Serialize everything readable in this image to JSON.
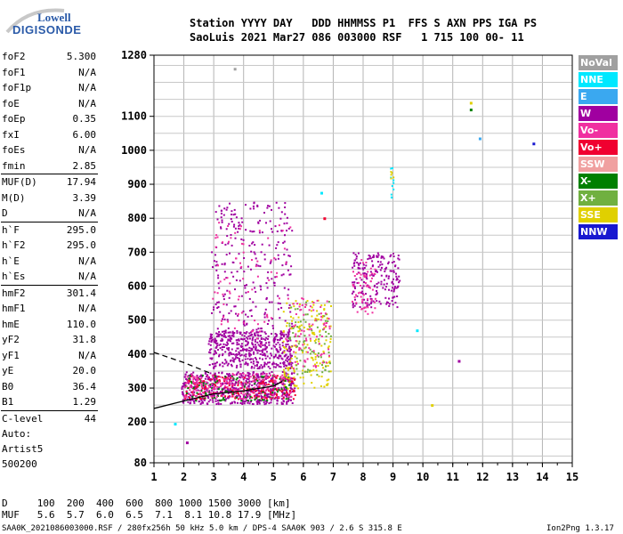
{
  "logo": {
    "line1": "Lowell",
    "line2": "DIGISONDE"
  },
  "header": {
    "labels": "Station YYYY DAY   DDD HHMMSS P1  FFS S AXN PPS IGA PS",
    "values": "SaoLuis 2021 Mar27 086 003000 RSF   1 715 100 00- 11"
  },
  "params": [
    {
      "name": "foF2",
      "value": "5.300"
    },
    {
      "name": "foF1",
      "value": "N/A"
    },
    {
      "name": "foF1p",
      "value": "N/A"
    },
    {
      "name": "foE",
      "value": "N/A"
    },
    {
      "name": "foEp",
      "value": "0.35"
    },
    {
      "name": "fxI",
      "value": "6.00"
    },
    {
      "name": "foEs",
      "value": "N/A"
    },
    {
      "name": "fmin",
      "value": "2.85"
    },
    {
      "name": "MUF(D)",
      "value": "17.94"
    },
    {
      "name": "M(D)",
      "value": "3.39"
    },
    {
      "name": "D",
      "value": "N/A"
    },
    {
      "name": "h`F",
      "value": "295.0"
    },
    {
      "name": "h`F2",
      "value": "295.0"
    },
    {
      "name": "h`E",
      "value": "N/A"
    },
    {
      "name": "h`Es",
      "value": "N/A"
    },
    {
      "name": "hmF2",
      "value": "301.4"
    },
    {
      "name": "hmF1",
      "value": "N/A"
    },
    {
      "name": "hmE",
      "value": "110.0"
    },
    {
      "name": "yF2",
      "value": "31.8"
    },
    {
      "name": "yF1",
      "value": "N/A"
    },
    {
      "name": "yE",
      "value": "20.0"
    },
    {
      "name": "B0",
      "value": "36.4"
    },
    {
      "name": "B1",
      "value": "1.29"
    },
    {
      "name": "C-level",
      "value": "44"
    }
  ],
  "auto": {
    "line1": "Auto:",
    "line2": "Artist5",
    "line3": "500200"
  },
  "legend": [
    {
      "label": "NoVal",
      "color": "#a0a0a0"
    },
    {
      "label": "NNE",
      "color": "#00e8ff"
    },
    {
      "label": "E",
      "color": "#3aa8f0"
    },
    {
      "label": "W",
      "color": "#a000a0"
    },
    {
      "label": "Vo-",
      "color": "#f030a0"
    },
    {
      "label": "Vo+",
      "color": "#f00030"
    },
    {
      "label": "SSW",
      "color": "#f0a0a0"
    },
    {
      "label": "X-",
      "color": "#008000"
    },
    {
      "label": "X+",
      "color": "#70b040"
    },
    {
      "label": "SSE",
      "color": "#e0d000"
    },
    {
      "label": "NNW",
      "color": "#1818d0"
    }
  ],
  "footer": {
    "d_row": "D     100  200  400  600  800 1000 1500 3000 [km]",
    "muf_row": "MUF   5.6  5.7  6.0  6.5  7.1  8.1 10.8 17.9 [MHz]",
    "file_info": "SAA0K_2021086003000.RSF / 280fx256h 50 kHz 5.0 km / DPS-4 SAA0K 903 / 2.6 S 315.8 E",
    "version": "Ion2Png 1.3.17"
  },
  "chart_data": {
    "type": "scatter",
    "xlim": [
      1,
      15
    ],
    "ylim": [
      80,
      1280
    ],
    "xticks": [
      "1",
      "2",
      "3",
      "4",
      "5",
      "6",
      "7",
      "8",
      "9",
      "10",
      "11",
      "12",
      "13",
      "14",
      "15"
    ],
    "yticks": [
      "80",
      "200",
      "300",
      "400",
      "500",
      "600",
      "700",
      "800",
      "900",
      "1000",
      "1100",
      "1280"
    ],
    "grid": true,
    "trace": {
      "x": [
        1.0,
        2.0,
        3.0,
        4.0,
        5.0,
        5.3
      ],
      "y": [
        240,
        262,
        283,
        292,
        306,
        320
      ]
    },
    "trace_dashed": {
      "x": [
        1.0,
        2.0,
        2.85
      ],
      "y": [
        405,
        375,
        345
      ]
    },
    "clusters": [
      {
        "name": "o-trace-low",
        "x": [
          1.9,
          5.7
        ],
        "y": [
          255,
          350
        ],
        "color": "#a000a0",
        "n": 600
      },
      {
        "name": "o-trace-low2",
        "x": [
          2.0,
          5.7
        ],
        "y": [
          270,
          340
        ],
        "color": "#f00030",
        "n": 180
      },
      {
        "name": "o-trace-low3",
        "x": [
          2.0,
          5.6
        ],
        "y": [
          265,
          340
        ],
        "color": "#008000",
        "n": 120
      },
      {
        "name": "o-trace-low4",
        "x": [
          2.0,
          5.6
        ],
        "y": [
          270,
          345
        ],
        "color": "#f030a0",
        "n": 200
      },
      {
        "name": "spread-band",
        "x": [
          2.8,
          5.6
        ],
        "y": [
          360,
          470
        ],
        "color": "#a000a0",
        "n": 450
      },
      {
        "name": "spread-vertical",
        "x": [
          2.9,
          5.6
        ],
        "y": [
          400,
          850
        ],
        "color": "#a000a0",
        "n": 300
      },
      {
        "name": "spread-vertical2",
        "x": [
          2.9,
          5.6
        ],
        "y": [
          430,
          800
        ],
        "color": "#f030a0",
        "n": 80
      },
      {
        "name": "x-trace",
        "x": [
          5.3,
          6.9
        ],
        "y": [
          300,
          560
        ],
        "color": "#e0d000",
        "n": 160
      },
      {
        "name": "x-trace2",
        "x": [
          5.5,
          6.9
        ],
        "y": [
          340,
          560
        ],
        "color": "#70b040",
        "n": 80
      },
      {
        "name": "x-trace3",
        "x": [
          5.6,
          6.9
        ],
        "y": [
          360,
          570
        ],
        "color": "#f030a0",
        "n": 80
      },
      {
        "name": "f8-cluster",
        "x": [
          7.6,
          9.2
        ],
        "y": [
          540,
          700
        ],
        "color": "#a000a0",
        "n": 200
      },
      {
        "name": "f8-cluster2",
        "x": [
          7.6,
          8.4
        ],
        "y": [
          520,
          680
        ],
        "color": "#f030a0",
        "n": 60
      },
      {
        "name": "f9-points",
        "x": [
          8.9,
          9.0
        ],
        "y": [
          860,
          950
        ],
        "color": "#00e8ff",
        "n": 10
      },
      {
        "name": "f9-points2",
        "x": [
          8.9,
          9.0
        ],
        "y": [
          880,
          940
        ],
        "color": "#e0d000",
        "n": 5
      }
    ],
    "points": [
      {
        "x": 11.6,
        "y": 1120,
        "color": "#008000"
      },
      {
        "x": 11.6,
        "y": 1140,
        "color": "#e0d000"
      },
      {
        "x": 11.9,
        "y": 1035,
        "color": "#3aa8f0"
      },
      {
        "x": 13.7,
        "y": 1020,
        "color": "#1818d0"
      },
      {
        "x": 11.2,
        "y": 380,
        "color": "#a000a0"
      },
      {
        "x": 10.3,
        "y": 250,
        "color": "#e0d000"
      },
      {
        "x": 9.8,
        "y": 470,
        "color": "#00e8ff"
      },
      {
        "x": 1.7,
        "y": 195,
        "color": "#00e8ff"
      },
      {
        "x": 2.1,
        "y": 140,
        "color": "#a000a0"
      },
      {
        "x": 3.7,
        "y": 1240,
        "color": "#a0a0a0"
      },
      {
        "x": 6.6,
        "y": 875,
        "color": "#00e8ff"
      },
      {
        "x": 6.7,
        "y": 800,
        "color": "#f00030"
      }
    ]
  }
}
